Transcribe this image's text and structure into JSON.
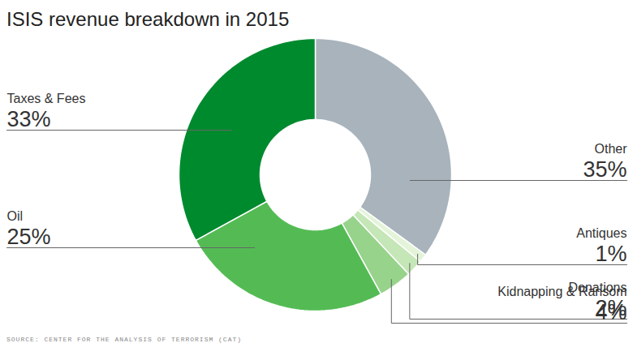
{
  "chart_data": {
    "type": "donut",
    "title": "ISIS revenue breakdown in 2015",
    "source": "SOURCE: CENTER FOR THE ANALYSIS OF TERRORISM (CAT)",
    "categories": [
      "Other",
      "Antiques",
      "Donations",
      "Kidnapping & Ransom",
      "Oil",
      "Taxes & Fees"
    ],
    "values": [
      35,
      1,
      2,
      4,
      25,
      33
    ],
    "value_labels": [
      "35%",
      "1%",
      "2%",
      "4%",
      "25%",
      "33%"
    ],
    "colors": [
      "#a8b3bc",
      "#e3f4d9",
      "#c5e6b6",
      "#97d38b",
      "#54bb54",
      "#008a2e"
    ],
    "data_labels": true
  }
}
